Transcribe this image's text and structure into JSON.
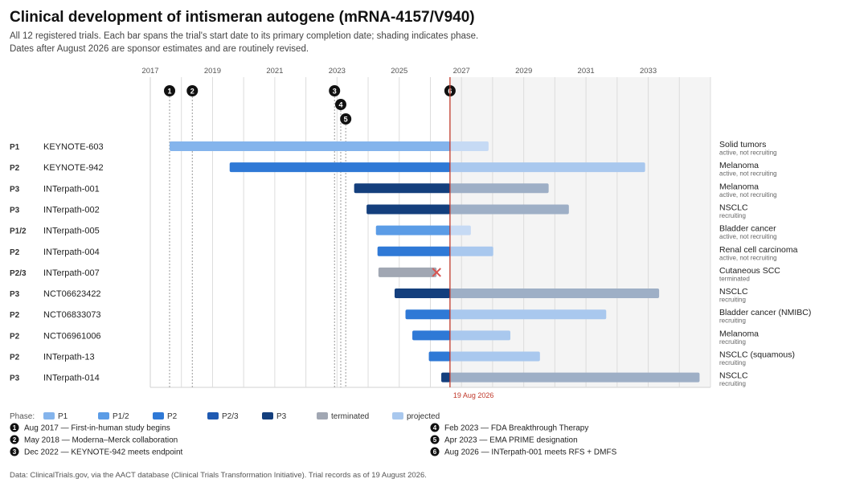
{
  "header": {
    "title": "Clinical development of intismeran autogene (mRNA-4157/V940)",
    "subtitle_line1": "All 12 registered trials. Each bar spans the trial's start date to its primary completion date; shading indicates phase.",
    "subtitle_line2": "Dates after August 2026 are sponsor estimates and are routinely revised."
  },
  "footer": {
    "source": "Data: ClinicalTrials.gov, via the AACT database (Clinical Trials Transformation Initiative). Trial records as of 19 August 2026."
  },
  "chart_data": {
    "type": "timeline-gantt",
    "x_axis": {
      "min": 2017.0,
      "max": 2035.0,
      "ticks": [
        2017,
        2019,
        2021,
        2023,
        2025,
        2027,
        2029,
        2031,
        2033
      ],
      "minor_ticks_every_year": true
    },
    "data_date": 2026.63,
    "data_date_label": "19 Aug 2026",
    "trials": [
      {
        "phase": "P1",
        "name": "KEYNOTE-603",
        "start": 2017.62,
        "actual_end": 2026.63,
        "projected_end": 2027.87,
        "indication": "Solid tumors",
        "status": "active, not recruiting",
        "terminated": false
      },
      {
        "phase": "P2",
        "name": "KEYNOTE-942",
        "start": 2019.55,
        "actual_end": 2026.63,
        "projected_end": 2032.9,
        "indication": "Melanoma",
        "status": "active, not recruiting",
        "terminated": false
      },
      {
        "phase": "P3",
        "name": "INTerpath-001",
        "start": 2023.55,
        "actual_end": 2026.63,
        "projected_end": 2029.8,
        "indication": "Melanoma",
        "status": "active, not recruiting",
        "terminated": false
      },
      {
        "phase": "P3",
        "name": "INTerpath-002",
        "start": 2023.95,
        "actual_end": 2026.63,
        "projected_end": 2030.45,
        "indication": "NSCLC",
        "status": "recruiting",
        "terminated": false
      },
      {
        "phase": "P1/2",
        "name": "INTerpath-005",
        "start": 2024.25,
        "actual_end": 2026.63,
        "projected_end": 2027.3,
        "indication": "Bladder cancer",
        "status": "active, not recruiting",
        "terminated": false
      },
      {
        "phase": "P2",
        "name": "INTerpath-004",
        "start": 2024.3,
        "actual_end": 2026.63,
        "projected_end": 2028.02,
        "indication": "Renal cell carcinoma",
        "status": "active, not recruiting",
        "terminated": false
      },
      {
        "phase": "P2/3",
        "name": "INTerpath-007",
        "start": 2024.33,
        "actual_end": 2026.2,
        "projected_end": null,
        "indication": "Cutaneous SCC",
        "status": "terminated",
        "terminated": true
      },
      {
        "phase": "P3",
        "name": "NCT06623422",
        "start": 2024.85,
        "actual_end": 2026.63,
        "projected_end": 2033.35,
        "indication": "NSCLC",
        "status": "recruiting",
        "terminated": false
      },
      {
        "phase": "P2",
        "name": "NCT06833073",
        "start": 2025.2,
        "actual_end": 2026.63,
        "projected_end": 2031.65,
        "indication": "Bladder cancer (NMIBC)",
        "status": "recruiting",
        "terminated": false
      },
      {
        "phase": "P2",
        "name": "NCT06961006",
        "start": 2025.42,
        "actual_end": 2026.63,
        "projected_end": 2028.57,
        "indication": "Melanoma",
        "status": "recruiting",
        "terminated": false
      },
      {
        "phase": "P2",
        "name": "INTerpath-13",
        "start": 2025.95,
        "actual_end": 2026.63,
        "projected_end": 2029.52,
        "indication": "NSCLC (squamous)",
        "status": "recruiting",
        "terminated": false
      },
      {
        "phase": "P3",
        "name": "INTerpath-014",
        "start": 2026.35,
        "actual_end": 2026.63,
        "projected_end": 2034.65,
        "indication": "NSCLC",
        "status": "recruiting",
        "terminated": false
      }
    ],
    "milestones": [
      {
        "number": "1",
        "date": 2017.62,
        "text": "Aug 2017 — First-in-human study begins"
      },
      {
        "number": "2",
        "date": 2018.35,
        "text": "May 2018 — Moderna–Merck collaboration"
      },
      {
        "number": "3",
        "date": 2022.92,
        "text": "Dec 2022 — KEYNOTE-942 meets endpoint"
      },
      {
        "number": "4",
        "date": 2023.12,
        "text": "Feb 2023 — FDA Breakthrough Therapy"
      },
      {
        "number": "5",
        "date": 2023.28,
        "text": "Apr 2023 — EMA PRIME designation"
      },
      {
        "number": "6",
        "date": 2026.63,
        "text": "Aug 2026 — INTerpath-001 meets RFS + DMFS"
      }
    ],
    "legend": {
      "title": "Phase:",
      "entries": [
        {
          "label": "P1",
          "color": "#84b4ec"
        },
        {
          "label": "P1/2",
          "color": "#5b9ce6"
        },
        {
          "label": "P2",
          "color": "#2f79d6"
        },
        {
          "label": "P2/3",
          "color": "#1f5ab2"
        },
        {
          "label": "P3",
          "color": "#143f7d"
        },
        {
          "label": "terminated",
          "color": "#a1a7b3"
        },
        {
          "label": "projected",
          "color": "#a9c8ee"
        }
      ]
    },
    "colors": {
      "P1": "#84b4ec",
      "P1/2": "#5b9ce6",
      "P2": "#2f79d6",
      "P2/3": "#1f5ab2",
      "P3": "#143f7d",
      "terminated": "#a1a7b3",
      "projected_light": "#c6daf4",
      "projected_mid": "#a9c8ee",
      "projected_p3": "#9eafc6",
      "data_date_line": "#c0392b",
      "terminated_marker": "#d9534f",
      "future_shading": "#f4f4f4",
      "milestone_badge": "#111111"
    }
  }
}
